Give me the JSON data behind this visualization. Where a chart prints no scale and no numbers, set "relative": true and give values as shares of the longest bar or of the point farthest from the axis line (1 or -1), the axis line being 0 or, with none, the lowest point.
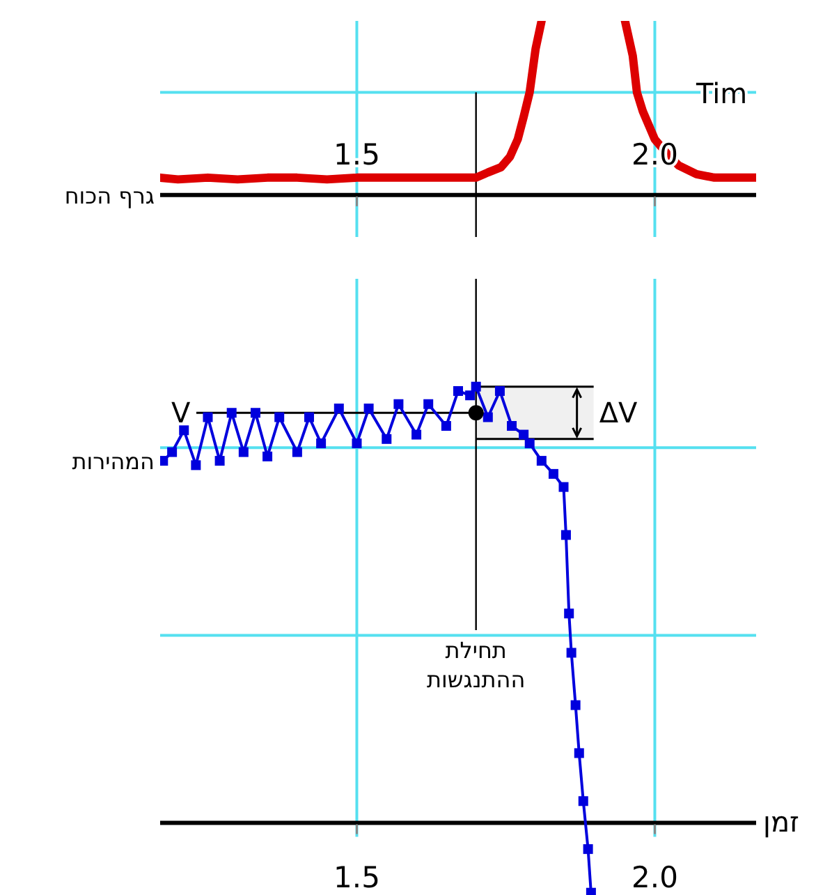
{
  "chart_data": [
    {
      "type": "line",
      "relative": true,
      "xlim": [
        1.17,
        2.17
      ],
      "xticks": [
        1.5,
        {
          "value": 2,
          "label": "2.0"
        }
      ],
      "grid": "x",
      "tick_labels": "x",
      "xlabel": "Tim",
      "ylabel": "גרף הכוח",
      "line_style": "solid",
      "ref_lines": [
        {
          "axis": "y",
          "value": 0.59,
          "color": "#55e0f0"
        },
        {
          "axis": "x",
          "value": 1.7,
          "color": "#000000"
        }
      ],
      "series": [
        {
          "color": "#dd0000",
          "marker": "none",
          "x": [
            1.17,
            1.2,
            1.25,
            1.3,
            1.35,
            1.4,
            1.45,
            1.5,
            1.55,
            1.6,
            1.65,
            1.7,
            1.72,
            1.742,
            1.757,
            1.77,
            1.78,
            1.79,
            1.8,
            1.81
          ],
          "values": [
            0.1,
            0.09,
            0.1,
            0.09,
            0.1,
            0.1,
            0.09,
            0.1,
            0.1,
            0.1,
            0.1,
            0.1,
            0.13,
            0.16,
            0.22,
            0.32,
            0.45,
            0.59,
            0.84,
            1.0
          ]
        },
        {
          "color": "#dd0000",
          "marker": "none",
          "x": [
            1.95,
            1.963,
            1.97,
            1.98,
            1.99,
            2.0,
            2.02,
            2.04,
            2.07,
            2.1,
            2.17
          ],
          "values": [
            1.0,
            0.8,
            0.59,
            0.48,
            0.4,
            0.32,
            0.24,
            0.17,
            0.12,
            0.1,
            0.1
          ]
        }
      ]
    },
    {
      "type": "line",
      "relative": true,
      "xlim": [
        1.17,
        2.17
      ],
      "xticks": [
        1.5,
        {
          "value": 2,
          "label": "2.0"
        }
      ],
      "grid": "x",
      "tick_labels": "x",
      "xlabel": "זמן",
      "ylabel": "המהירות",
      "line_style": "solid",
      "ref_lines": [
        {
          "axis": "y",
          "value": 0.86,
          "color": "#55e0f0"
        },
        {
          "axis": "y",
          "value": 0.43,
          "color": "#55e0f0"
        },
        {
          "axis": "y",
          "value": 0.94,
          "label": "V",
          "color": "#000000"
        },
        {
          "axis": "x",
          "value": 1.7,
          "label": "תחילת ההתנגשות",
          "color": "#000000"
        }
      ],
      "bands": [
        {
          "axis": "y",
          "from": 0.88,
          "to": 1.0,
          "label": "ΔV",
          "color": "#000000"
        }
      ],
      "series": [
        {
          "color": "#0000dd",
          "marker": "square",
          "x": [
            1.175,
            1.19,
            1.21,
            1.23,
            1.25,
            1.27,
            1.29,
            1.31,
            1.33,
            1.35,
            1.37,
            1.4,
            1.42,
            1.44,
            1.47,
            1.5,
            1.52,
            1.55,
            1.57,
            1.6,
            1.62,
            1.65,
            1.67,
            1.69,
            1.7,
            1.72,
            1.74,
            1.76,
            1.78,
            1.79,
            1.81,
            1.83,
            1.847,
            1.851,
            1.856,
            1.86,
            1.867,
            1.873,
            1.88,
            1.888,
            1.893
          ],
          "values": [
            0.83,
            0.85,
            0.9,
            0.82,
            0.93,
            0.83,
            0.94,
            0.85,
            0.94,
            0.84,
            0.93,
            0.85,
            0.93,
            0.87,
            0.95,
            0.87,
            0.95,
            0.88,
            0.96,
            0.89,
            0.96,
            0.91,
            0.99,
            0.98,
            1.0,
            0.93,
            0.99,
            0.91,
            0.89,
            0.87,
            0.83,
            0.8,
            0.77,
            0.66,
            0.48,
            0.39,
            0.27,
            0.16,
            0.05,
            -0.06,
            -0.16
          ]
        },
        {
          "type": "scatter",
          "color": "#000000",
          "marker": "circle",
          "x": [
            1.7
          ],
          "values": [
            0.94
          ]
        }
      ]
    }
  ]
}
